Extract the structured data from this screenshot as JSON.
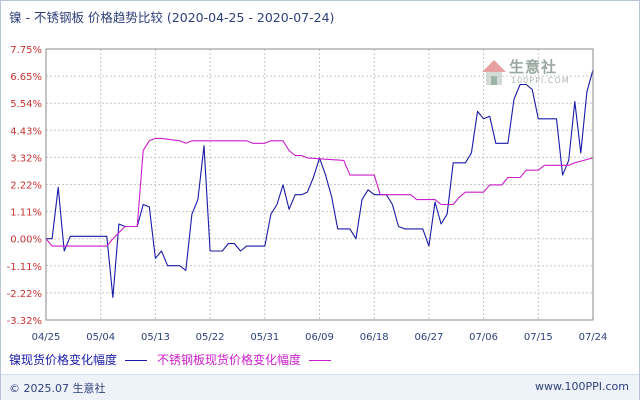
{
  "title": {
    "main": "镍 - 不锈钢板 价格趋势比较",
    "period": "(2020-04-25 - 2020-07-24)"
  },
  "watermark": {
    "brand": "生意社",
    "url": "100PPI.COM"
  },
  "legend": {
    "series1": "镍现货价格变化幅度",
    "series2": "不锈钢板现货价格变化幅度"
  },
  "footer": {
    "copyright": "© 2025.07 生意社",
    "site": "www.100PPI.com"
  },
  "colors": {
    "nickel": "#1a1aa8",
    "stainless": "#cc1fcc",
    "grid": "#c8c8c8",
    "ylabel": "#c83232"
  },
  "chart_data": {
    "type": "line",
    "title": "镍 - 不锈钢板 价格趋势比较",
    "xlabel": "",
    "ylabel": "",
    "x_range": [
      "2020-04-25",
      "2020-07-24"
    ],
    "x_ticks": [
      "04/25",
      "05/04",
      "05/13",
      "05/22",
      "05/31",
      "06/09",
      "06/18",
      "06/27",
      "07/06",
      "07/15",
      "07/24"
    ],
    "y_ticks": [
      "7.75%",
      "6.65%",
      "5.54%",
      "4.43%",
      "3.32%",
      "2.22%",
      "1.11%",
      "0.00%",
      "-1.11%",
      "-2.22%",
      "-3.32%"
    ],
    "ylim": [
      -3.32,
      7.75
    ],
    "grid": true,
    "legend_position": "bottom",
    "series": [
      {
        "name": "镍现货价格变化幅度",
        "color": "#1a1aa8",
        "points": [
          [
            "2020-04-25",
            0.0
          ],
          [
            "2020-04-26",
            0.0
          ],
          [
            "2020-04-27",
            2.1
          ],
          [
            "2020-04-28",
            -0.5
          ],
          [
            "2020-04-29",
            0.1
          ],
          [
            "2020-05-03",
            0.1
          ],
          [
            "2020-05-04",
            0.1
          ],
          [
            "2020-05-05",
            0.1
          ],
          [
            "2020-05-06",
            -2.4
          ],
          [
            "2020-05-07",
            0.6
          ],
          [
            "2020-05-08",
            0.5
          ],
          [
            "2020-05-09",
            0.5
          ],
          [
            "2020-05-10",
            0.5
          ],
          [
            "2020-05-11",
            1.4
          ],
          [
            "2020-05-12",
            1.3
          ],
          [
            "2020-05-13",
            -0.8
          ],
          [
            "2020-05-14",
            -0.5
          ],
          [
            "2020-05-15",
            -1.1
          ],
          [
            "2020-05-17",
            -1.1
          ],
          [
            "2020-05-18",
            -1.3
          ],
          [
            "2020-05-19",
            1.0
          ],
          [
            "2020-05-20",
            1.6
          ],
          [
            "2020-05-21",
            3.8
          ],
          [
            "2020-05-22",
            -0.5
          ],
          [
            "2020-05-24",
            -0.5
          ],
          [
            "2020-05-25",
            -0.2
          ],
          [
            "2020-05-26",
            -0.2
          ],
          [
            "2020-05-27",
            -0.5
          ],
          [
            "2020-05-28",
            -0.3
          ],
          [
            "2020-05-30",
            -0.3
          ],
          [
            "2020-05-31",
            -0.3
          ],
          [
            "2020-06-01",
            1.0
          ],
          [
            "2020-06-02",
            1.4
          ],
          [
            "2020-06-03",
            2.2
          ],
          [
            "2020-06-04",
            1.2
          ],
          [
            "2020-06-05",
            1.8
          ],
          [
            "2020-06-06",
            1.8
          ],
          [
            "2020-06-07",
            1.9
          ],
          [
            "2020-06-08",
            2.5
          ],
          [
            "2020-06-09",
            3.3
          ],
          [
            "2020-06-10",
            2.6
          ],
          [
            "2020-06-11",
            1.7
          ],
          [
            "2020-06-12",
            0.4
          ],
          [
            "2020-06-13",
            0.4
          ],
          [
            "2020-06-14",
            0.4
          ],
          [
            "2020-06-15",
            0.0
          ],
          [
            "2020-06-16",
            1.6
          ],
          [
            "2020-06-17",
            2.0
          ],
          [
            "2020-06-18",
            1.8
          ],
          [
            "2020-06-19",
            1.8
          ],
          [
            "2020-06-20",
            1.8
          ],
          [
            "2020-06-21",
            1.4
          ],
          [
            "2020-06-22",
            0.5
          ],
          [
            "2020-06-23",
            0.4
          ],
          [
            "2020-06-24",
            0.4
          ],
          [
            "2020-06-26",
            0.4
          ],
          [
            "2020-06-27",
            -0.3
          ],
          [
            "2020-06-28",
            1.5
          ],
          [
            "2020-06-29",
            0.6
          ],
          [
            "2020-06-30",
            1.0
          ],
          [
            "2020-07-01",
            3.1
          ],
          [
            "2020-07-02",
            3.1
          ],
          [
            "2020-07-03",
            3.1
          ],
          [
            "2020-07-04",
            3.5
          ],
          [
            "2020-07-05",
            5.2
          ],
          [
            "2020-07-06",
            4.9
          ],
          [
            "2020-07-07",
            5.0
          ],
          [
            "2020-07-08",
            3.9
          ],
          [
            "2020-07-09",
            3.9
          ],
          [
            "2020-07-10",
            3.9
          ],
          [
            "2020-07-11",
            5.7
          ],
          [
            "2020-07-12",
            6.3
          ],
          [
            "2020-07-13",
            6.3
          ],
          [
            "2020-07-14",
            6.1
          ],
          [
            "2020-07-15",
            4.9
          ],
          [
            "2020-07-16",
            4.9
          ],
          [
            "2020-07-17",
            4.9
          ],
          [
            "2020-07-18",
            4.9
          ],
          [
            "2020-07-19",
            2.6
          ],
          [
            "2020-07-20",
            3.2
          ],
          [
            "2020-07-21",
            5.6
          ],
          [
            "2020-07-22",
            3.5
          ],
          [
            "2020-07-23",
            6.0
          ],
          [
            "2020-07-24",
            6.9
          ]
        ]
      },
      {
        "name": "不锈钢板现货价格变化幅度",
        "color": "#cc1fcc",
        "points": [
          [
            "2020-04-25",
            0.0
          ],
          [
            "2020-04-26",
            -0.3
          ],
          [
            "2020-05-05",
            -0.3
          ],
          [
            "2020-05-06",
            0.0
          ],
          [
            "2020-05-08",
            0.5
          ],
          [
            "2020-05-10",
            0.5
          ],
          [
            "2020-05-11",
            3.6
          ],
          [
            "2020-05-12",
            4.0
          ],
          [
            "2020-05-13",
            4.1
          ],
          [
            "2020-05-14",
            4.1
          ],
          [
            "2020-05-17",
            4.0
          ],
          [
            "2020-05-18",
            3.9
          ],
          [
            "2020-05-19",
            4.0
          ],
          [
            "2020-05-28",
            4.0
          ],
          [
            "2020-05-29",
            3.9
          ],
          [
            "2020-05-31",
            3.9
          ],
          [
            "2020-06-01",
            4.0
          ],
          [
            "2020-06-03",
            4.0
          ],
          [
            "2020-06-04",
            3.6
          ],
          [
            "2020-06-05",
            3.4
          ],
          [
            "2020-06-06",
            3.4
          ],
          [
            "2020-06-07",
            3.3
          ],
          [
            "2020-06-13",
            3.2
          ],
          [
            "2020-06-14",
            2.6
          ],
          [
            "2020-06-18",
            2.6
          ],
          [
            "2020-06-19",
            1.8
          ],
          [
            "2020-06-24",
            1.8
          ],
          [
            "2020-06-25",
            1.6
          ],
          [
            "2020-06-28",
            1.6
          ],
          [
            "2020-06-29",
            1.4
          ],
          [
            "2020-07-01",
            1.4
          ],
          [
            "2020-07-02",
            1.7
          ],
          [
            "2020-07-03",
            1.9
          ],
          [
            "2020-07-06",
            1.9
          ],
          [
            "2020-07-07",
            2.2
          ],
          [
            "2020-07-09",
            2.2
          ],
          [
            "2020-07-10",
            2.5
          ],
          [
            "2020-07-12",
            2.5
          ],
          [
            "2020-07-13",
            2.8
          ],
          [
            "2020-07-15",
            2.8
          ],
          [
            "2020-07-16",
            3.0
          ],
          [
            "2020-07-20",
            3.0
          ],
          [
            "2020-07-21",
            3.1
          ],
          [
            "2020-07-24",
            3.3
          ]
        ]
      }
    ]
  }
}
